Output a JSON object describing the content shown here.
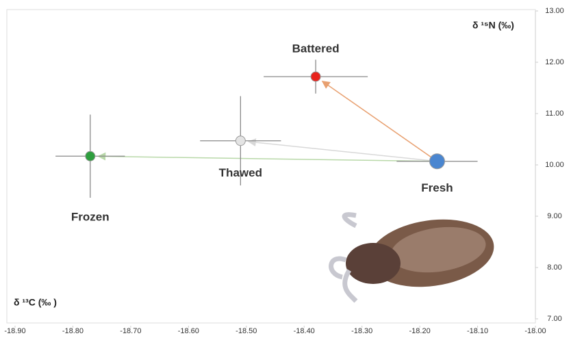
{
  "chart_data": {
    "type": "scatter",
    "x_label": "δ ¹³C (‰ )",
    "y_label": "δ ¹⁵N (‰)",
    "xlim": [
      -18.9,
      -18.0
    ],
    "xticks": [
      {
        "value": -18.9,
        "label": "-18.90"
      },
      {
        "value": -18.8,
        "label": "-18.80"
      },
      {
        "value": -18.7,
        "label": "-18.70"
      },
      {
        "value": -18.6,
        "label": "-18.60"
      },
      {
        "value": -18.5,
        "label": "-18.50"
      },
      {
        "value": -18.4,
        "label": "-18.40"
      },
      {
        "value": -18.3,
        "label": "-18.30"
      },
      {
        "value": -18.2,
        "label": "-18.20"
      },
      {
        "value": -18.1,
        "label": "-18.10"
      },
      {
        "value": -18.0,
        "label": "-18.00"
      }
    ],
    "ylim": [
      7,
      13
    ],
    "yticks": [
      {
        "value": 7,
        "label": "7.00"
      },
      {
        "value": 8,
        "label": "8.00"
      },
      {
        "value": 9,
        "label": "9.00"
      },
      {
        "value": 10,
        "label": "10.00"
      },
      {
        "value": 11,
        "label": "11.00"
      },
      {
        "value": 12,
        "label": "12.00"
      },
      {
        "value": 13,
        "label": "13.00"
      }
    ],
    "series": [
      {
        "name": "Fresh",
        "color": "#4a86d0",
        "x": [
          -18.17
        ],
        "values": [
          10.07
        ],
        "xerr": [
          0.07
        ],
        "yerr": [
          0
        ]
      },
      {
        "name": "Battered",
        "color": "#e8231d",
        "arrow_color": "#e8a070",
        "x": [
          -18.38
        ],
        "values": [
          11.72
        ],
        "xerr": [
          0.09
        ],
        "yerr": [
          0.33
        ]
      },
      {
        "name": "Thawed",
        "color": "#e4e4e4",
        "arrow_color": "#d8d8d8",
        "x": [
          -18.51
        ],
        "values": [
          10.47
        ],
        "xerr": [
          0.07
        ],
        "yerr": [
          0.87
        ]
      },
      {
        "name": "Frozen",
        "color": "#2e9e3e",
        "arrow_color": "#b8d8a8",
        "x": [
          -18.77
        ],
        "values": [
          10.17
        ],
        "xerr": [
          0.06
        ],
        "yerr": [
          0.81
        ]
      }
    ]
  }
}
